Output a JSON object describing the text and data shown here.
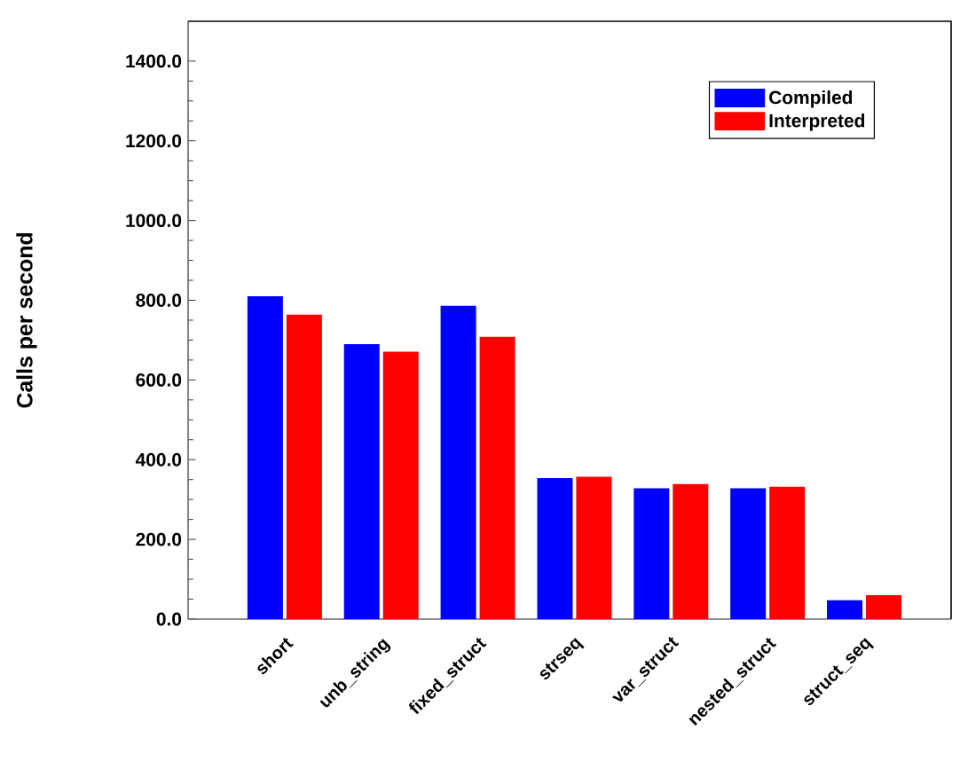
{
  "chart_data": {
    "type": "bar",
    "ylabel": "Calls per second",
    "categories": [
      "short",
      "unb_string",
      "fixed_struct",
      "strseq",
      "var_struct",
      "nested_struct",
      "struct_seq"
    ],
    "series": [
      {
        "name": "Compiled",
        "color": "#0000ff",
        "values": [
          810,
          690,
          786,
          354,
          328,
          328,
          47
        ]
      },
      {
        "name": "Interpreted",
        "color": "#ff0000",
        "values": [
          764,
          671,
          708,
          357,
          339,
          332,
          60
        ]
      }
    ],
    "ylim": [
      0,
      1500
    ],
    "yticks": [
      {
        "value": 0,
        "label": "0.0"
      },
      {
        "value": 200,
        "label": "200.0"
      },
      {
        "value": 400,
        "label": "400.0"
      },
      {
        "value": 600,
        "label": "600.0"
      },
      {
        "value": 800,
        "label": "800.0"
      },
      {
        "value": 1000,
        "label": "1000.0"
      },
      {
        "value": 1200,
        "label": "1200.0"
      },
      {
        "value": 1400,
        "label": "1400.0"
      }
    ],
    "grid": false,
    "legend": "top right"
  }
}
